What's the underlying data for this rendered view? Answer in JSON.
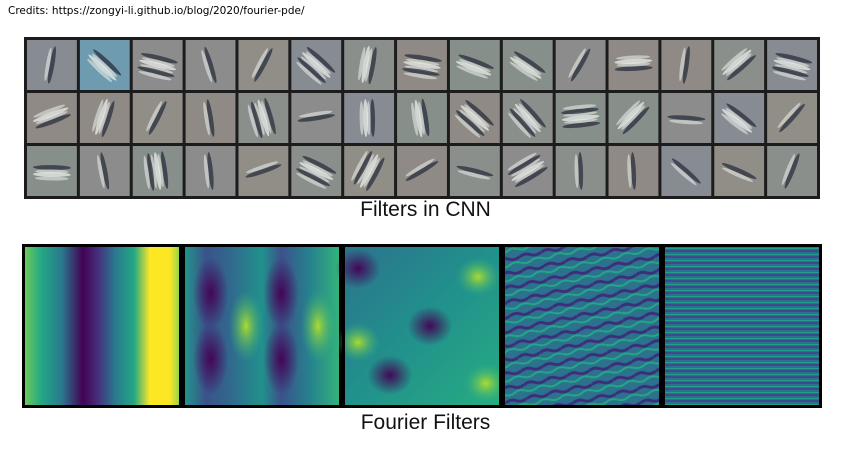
{
  "credits": "Credits: https://zongyi-li.github.io/blog/2020/fourier-pde/",
  "cnn_section": {
    "caption": "Filters in CNN",
    "rows": 3,
    "cols": 15
  },
  "fourier_section": {
    "caption": "Fourier Filters",
    "panels": 5
  },
  "colors": {
    "viridis_dark": "#440154",
    "viridis_mid": "#21918c",
    "viridis_bright": "#fde725",
    "cnn_gray": "#8c8c8c",
    "frame": "#000000"
  }
}
